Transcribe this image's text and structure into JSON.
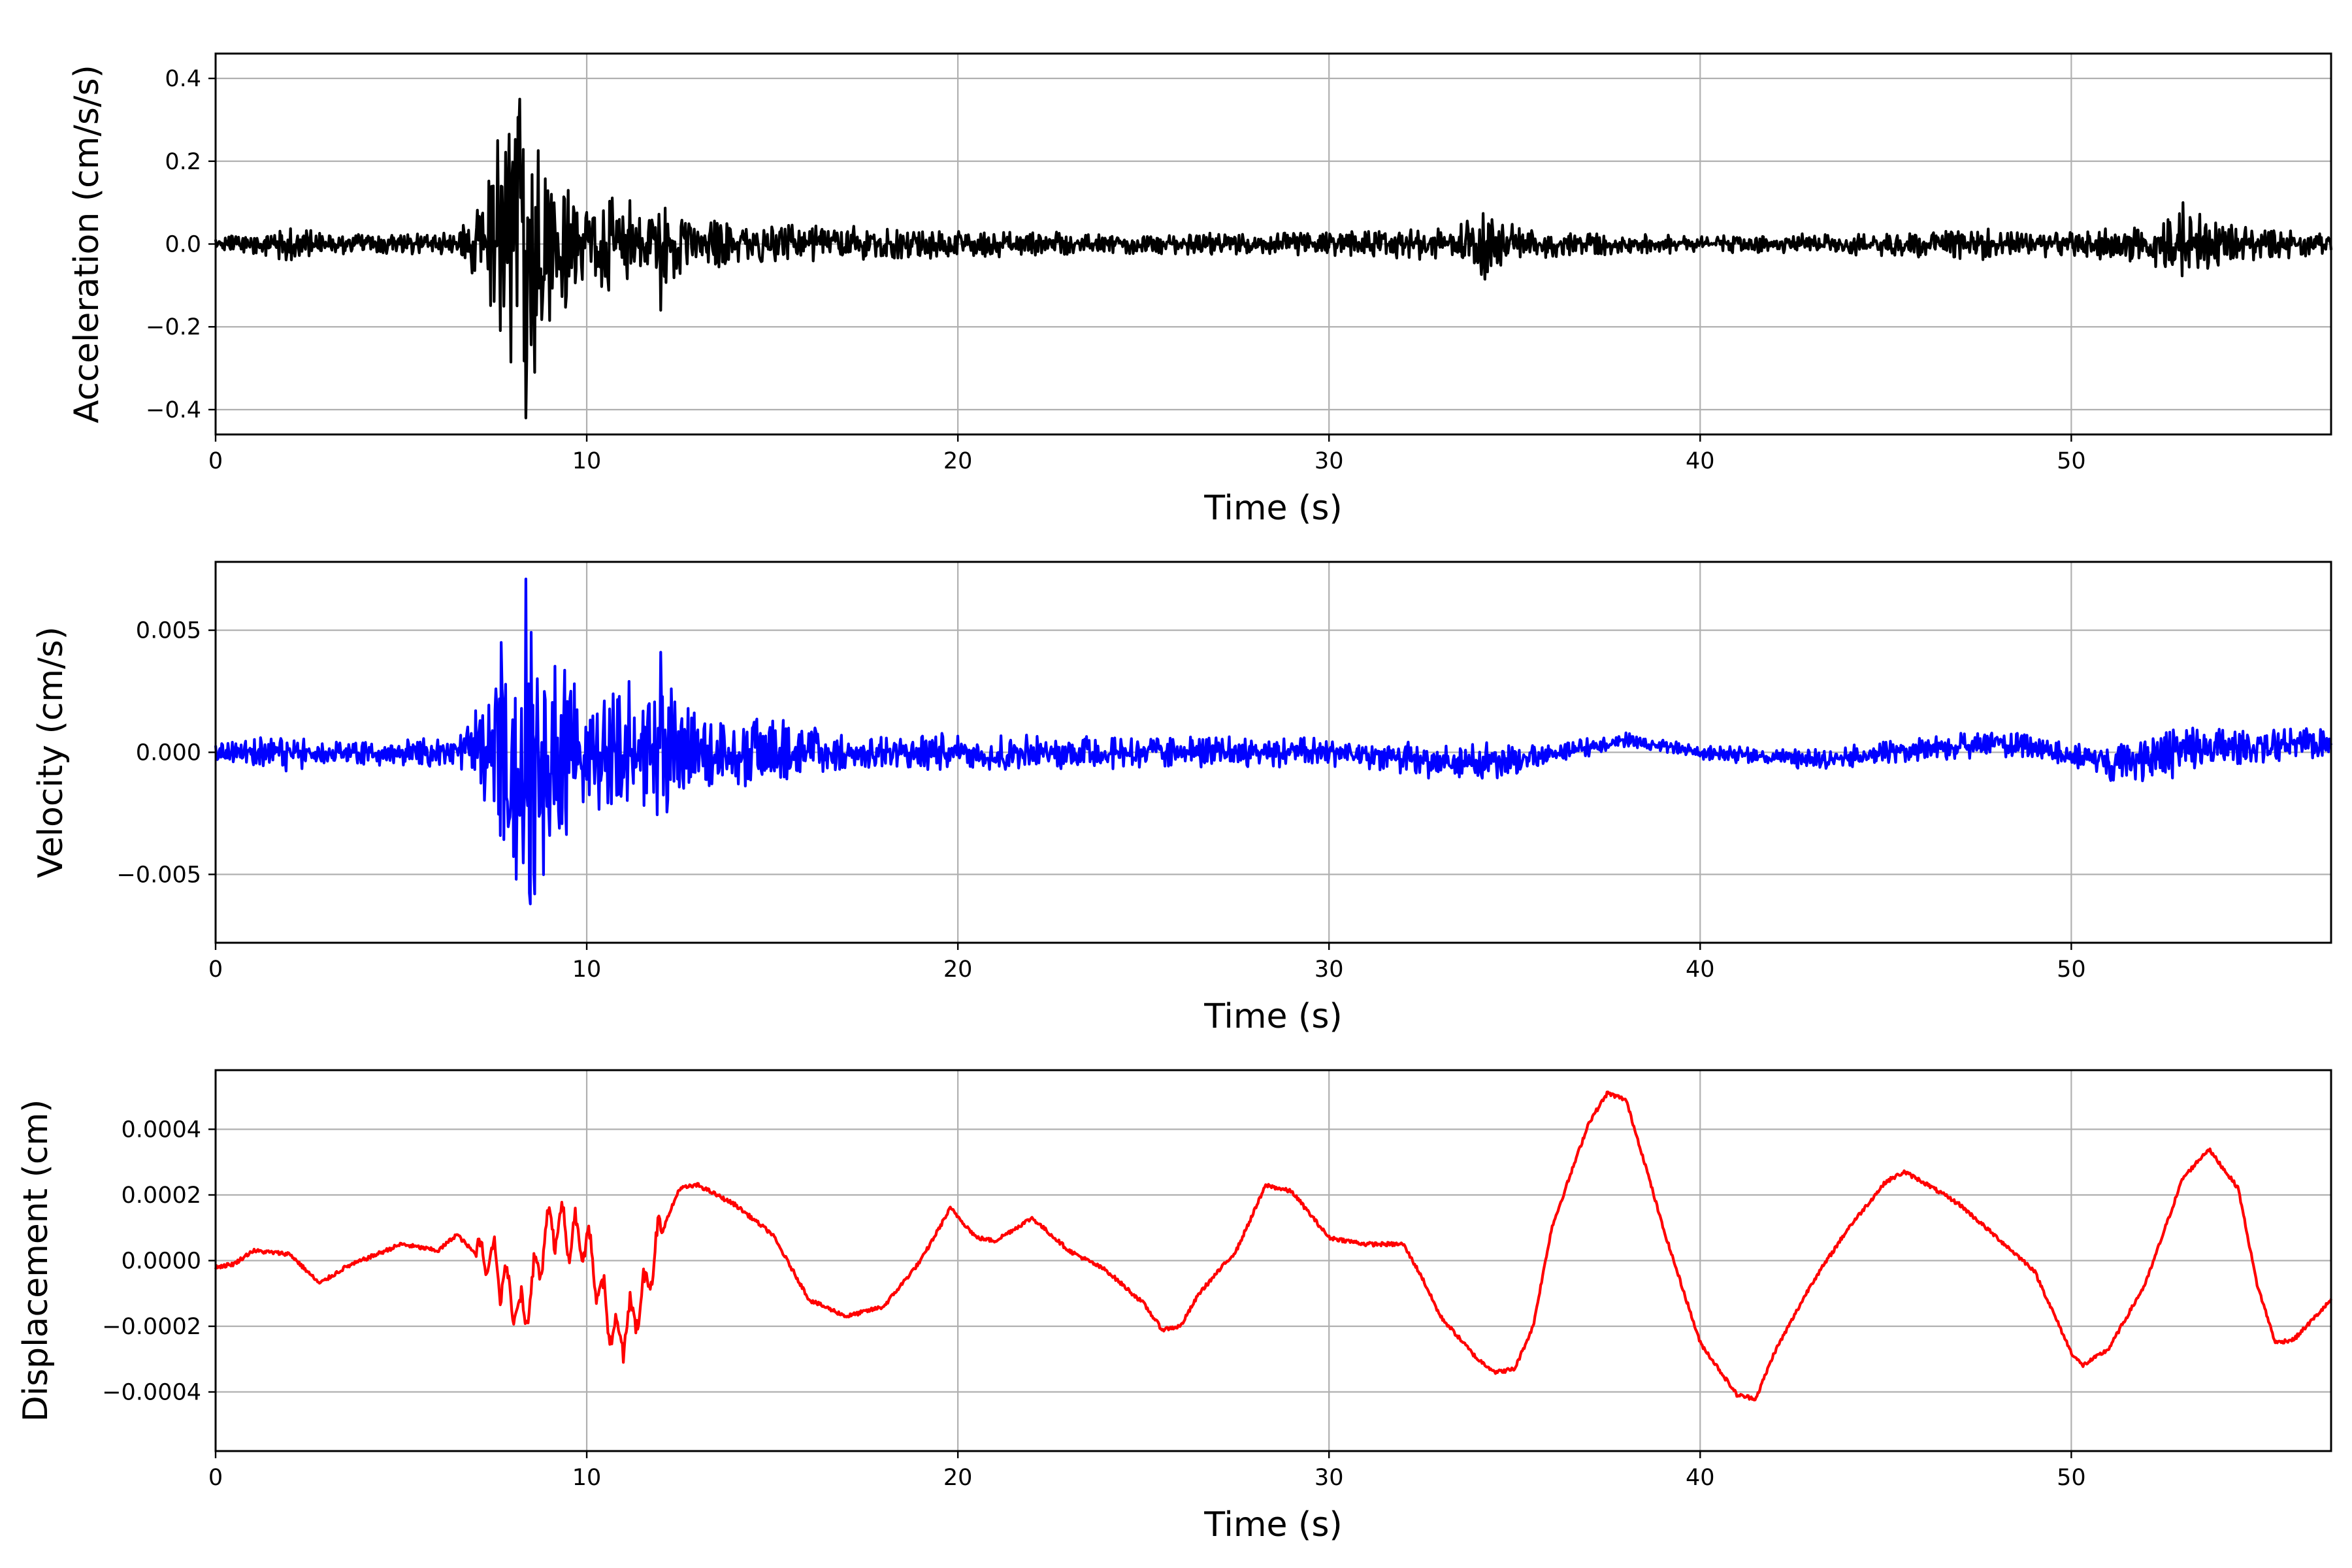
{
  "chart_data": [
    {
      "type": "line",
      "color": "#000000",
      "xlabel": "Time (s)",
      "ylabel": "Acceleration (cm/s/s)",
      "xlim": [
        0,
        57
      ],
      "ylim": [
        -0.46,
        0.46
      ],
      "grid": true,
      "xticks": [
        0,
        10,
        20,
        30,
        40,
        50
      ],
      "xtick_labels": [
        "0",
        "10",
        "20",
        "30",
        "40",
        "50"
      ],
      "yticks": [
        -0.4,
        -0.2,
        0.0,
        0.2,
        0.4
      ],
      "ytick_labels": [
        "−0.4",
        "−0.2",
        "0.0",
        "0.2",
        "0.4"
      ],
      "series": [
        {
          "amplitude_envelope": {
            "x": [
              0,
              2,
              3,
              6.5,
              7.2,
              8.0,
              8.5,
              9.0,
              10,
              12,
              13,
              15,
              20,
              25,
              30,
              33,
              34.2,
              35.5,
              40,
              45,
              47,
              50,
              52,
              53,
              54,
              55,
              57
            ],
            "y": [
              0.02,
              0.045,
              0.025,
              0.03,
              0.12,
              0.33,
              0.4,
              0.2,
              0.12,
              0.11,
              0.06,
              0.05,
              0.035,
              0.025,
              0.03,
              0.04,
              0.08,
              0.035,
              0.02,
              0.03,
              0.04,
              0.03,
              0.05,
              0.09,
              0.06,
              0.04,
              0.03
            ]
          },
          "extremes": [
            {
              "x": 8.35,
              "y": -0.42
            },
            {
              "x": 8.2,
              "y": 0.35
            },
            {
              "x": 8.6,
              "y": -0.31
            },
            {
              "x": 7.6,
              "y": 0.25
            },
            {
              "x": 12.0,
              "y": -0.16
            },
            {
              "x": 53.0,
              "y": 0.1
            },
            {
              "x": 34.2,
              "y": -0.085
            }
          ]
        }
      ]
    },
    {
      "type": "line",
      "color": "#0000ff",
      "xlabel": "Time (s)",
      "ylabel": "Velocity (cm/s)",
      "xlim": [
        0,
        57
      ],
      "ylim": [
        -0.0078,
        0.0078
      ],
      "grid": true,
      "xticks": [
        0,
        10,
        20,
        30,
        40,
        50
      ],
      "xtick_labels": [
        "0",
        "10",
        "20",
        "30",
        "40",
        "50"
      ],
      "yticks": [
        -0.005,
        0.0,
        0.005
      ],
      "ytick_labels": [
        "−0.005",
        "0.000",
        "0.005"
      ],
      "series": [
        {
          "baseline": {
            "x": [
              0,
              10,
              20,
              30,
              34.5,
              38,
              40,
              43,
              48,
              51,
              53,
              57
            ],
            "y": [
              0,
              0,
              0,
              0,
              -0.0005,
              0.0005,
              0,
              -0.0003,
              0.0004,
              -0.0004,
              0.0001,
              0.0004
            ]
          },
          "amplitude_envelope": {
            "x": [
              0,
              2,
              3,
              6.5,
              7.3,
              8.0,
              8.4,
              9.0,
              10,
              12,
              13,
              15.5,
              17,
              20,
              25,
              30,
              34.3,
              36,
              40,
              45,
              48,
              50,
              52.5,
              54,
              57
            ],
            "y": [
              0.0004,
              0.0008,
              0.0005,
              0.0006,
              0.0025,
              0.0055,
              0.0068,
              0.0045,
              0.0028,
              0.0035,
              0.0015,
              0.0014,
              0.0008,
              0.0008,
              0.0007,
              0.0006,
              0.0009,
              0.0004,
              0.0003,
              0.0005,
              0.0006,
              0.0005,
              0.0012,
              0.0008,
              0.0006
            ]
          },
          "extremes": [
            {
              "x": 8.35,
              "y": 0.0071
            },
            {
              "x": 8.6,
              "y": -0.0058
            },
            {
              "x": 8.1,
              "y": -0.0052
            },
            {
              "x": 12.0,
              "y": 0.0041
            },
            {
              "x": 7.7,
              "y": 0.0045
            }
          ]
        }
      ]
    },
    {
      "type": "line",
      "color": "#ff0000",
      "xlabel": "Time (s)",
      "ylabel": "Displacement (cm)",
      "xlim": [
        0,
        57
      ],
      "ylim": [
        -0.00058,
        0.00058
      ],
      "grid": true,
      "xticks": [
        0,
        10,
        20,
        30,
        40,
        50
      ],
      "xtick_labels": [
        "0",
        "10",
        "20",
        "30",
        "40",
        "50"
      ],
      "yticks": [
        -0.0004,
        -0.0002,
        0.0,
        0.0002,
        0.0004
      ],
      "ytick_labels": [
        "−0.0004",
        "−0.0002",
        "0.0000",
        "0.0002",
        "0.0004"
      ],
      "series": [
        {
          "x": [
            0,
            0.5,
            1,
            2,
            2.8,
            3.5,
            5,
            6,
            6.5,
            7,
            7.5,
            8.3,
            9,
            10,
            10.8,
            11.5,
            12,
            12.5,
            13,
            14,
            15,
            16,
            17,
            18,
            19,
            19.8,
            20.5,
            21,
            22,
            23,
            24,
            25,
            25.5,
            26,
            26.5,
            27.5,
            28.3,
            29,
            30,
            31,
            32,
            32.5,
            33,
            34,
            34.5,
            35,
            35.5,
            36,
            37,
            37.5,
            38,
            38.5,
            39,
            40,
            41,
            41.5,
            42,
            43,
            44,
            45,
            45.5,
            46,
            47,
            48,
            49,
            50,
            50.3,
            51,
            52,
            53,
            53.7,
            54.5,
            55,
            55.5,
            56,
            57
          ],
          "y": [
            -2e-05,
            -1e-05,
            3e-05,
            2e-05,
            -7e-05,
            -2e-05,
            5e-05,
            3e-05,
            8e-05,
            2e-05,
            0.0,
            -0.00018,
            0.00012,
            5e-05,
            -0.00025,
            -0.00012,
            8e-05,
            0.00022,
            0.00023,
            0.00017,
            8e-05,
            -0.00012,
            -0.00017,
            -0.00014,
            0.0,
            0.00016,
            7e-05,
            6e-05,
            0.00013,
            3e-05,
            -3e-05,
            -0.00013,
            -0.00021,
            -0.0002,
            -0.0001,
            3e-05,
            0.00023,
            0.00021,
            7e-05,
            5e-05,
            5e-05,
            -5e-05,
            -0.00017,
            -0.0003,
            -0.00034,
            -0.00033,
            -0.0002,
            0.0001,
            0.00042,
            0.00051,
            0.00049,
            0.0003,
            0.0001,
            -0.00025,
            -0.00041,
            -0.00042,
            -0.00028,
            -7e-05,
            0.0001,
            0.00024,
            0.00027,
            0.00024,
            0.00017,
            7e-05,
            -3e-05,
            -0.00028,
            -0.00032,
            -0.00027,
            -7e-05,
            0.00025,
            0.00034,
            0.00022,
            -7e-05,
            -0.00025,
            -0.00024,
            -0.00012
          ]
        }
      ]
    }
  ]
}
